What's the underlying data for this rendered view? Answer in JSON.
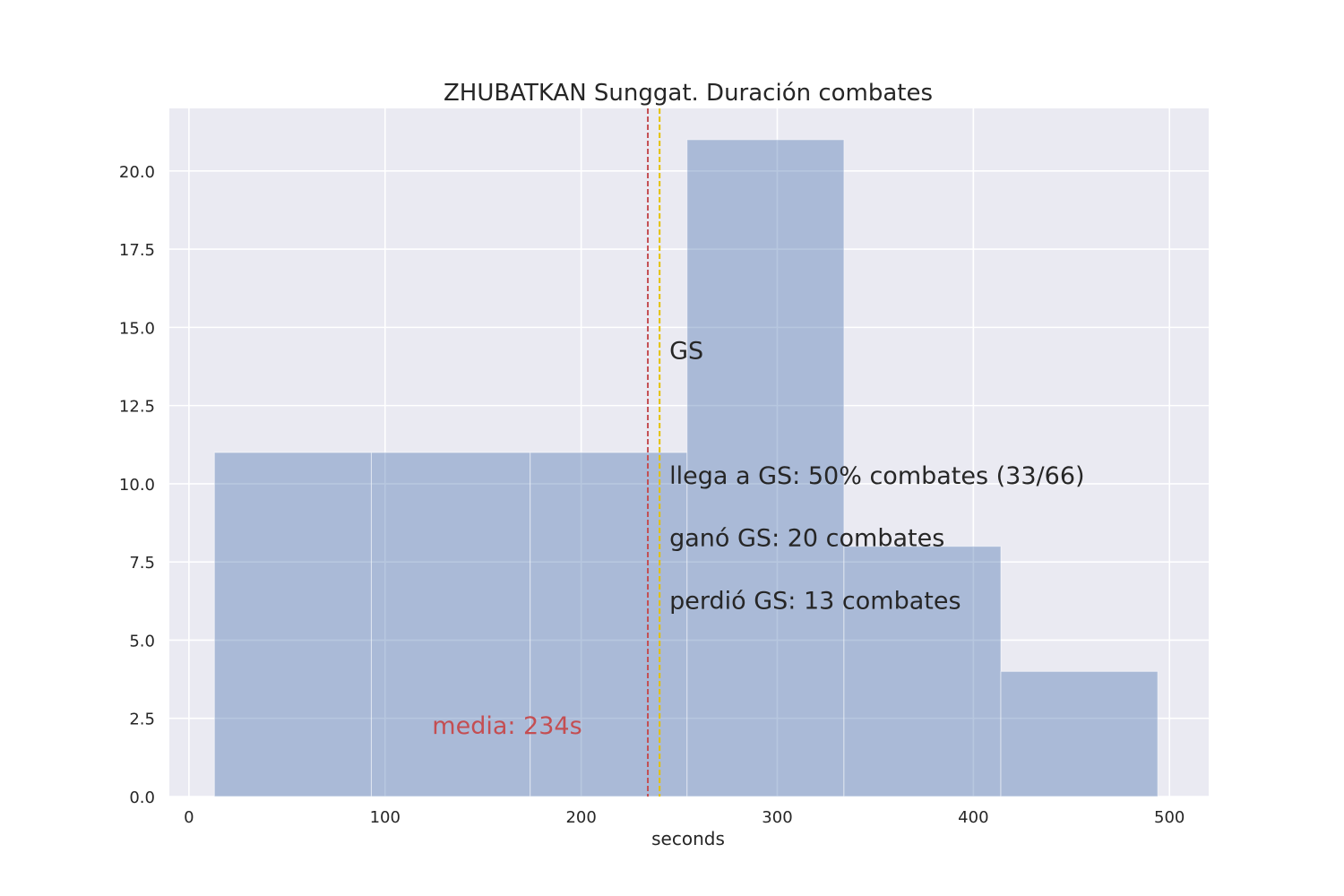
{
  "chart_data": {
    "type": "bar",
    "title": "ZHUBATKAN Sunggat. Duración combates",
    "xlabel": "seconds",
    "ylabel": "",
    "xlim": [
      -10,
      520
    ],
    "ylim": [
      0,
      22
    ],
    "grid": true,
    "x_ticks": [
      0,
      100,
      200,
      300,
      400,
      500
    ],
    "x_tick_labels": [
      "0",
      "100",
      "200",
      "300",
      "400",
      "500"
    ],
    "y_ticks": [
      0,
      2.5,
      5,
      7.5,
      10,
      12.5,
      15,
      17.5,
      20
    ],
    "y_tick_labels": [
      "0.0",
      "2.5",
      "5.0",
      "7.5",
      "10.0",
      "12.5",
      "15.0",
      "17.5",
      "20.0"
    ],
    "bins": [
      {
        "start": 13,
        "end": 93,
        "count": 11
      },
      {
        "start": 93,
        "end": 174,
        "count": 11
      },
      {
        "start": 174,
        "end": 254,
        "count": 11
      },
      {
        "start": 254,
        "end": 334,
        "count": 21
      },
      {
        "start": 334,
        "end": 414,
        "count": 8
      },
      {
        "start": 414,
        "end": 494,
        "count": 4
      }
    ],
    "mean_line": {
      "x": 234,
      "color": "#c44e52"
    },
    "gs_line": {
      "x": 240,
      "color": "#e5c100"
    },
    "annotations": [
      {
        "text": "GS",
        "x": 245,
        "y": 14
      },
      {
        "text": "llega a GS: 50% combates (33/66)",
        "x": 245,
        "y": 10
      },
      {
        "text": "ganó GS: 20 combates",
        "x": 245,
        "y": 8
      },
      {
        "text": "perdió GS: 13 combates",
        "x": 245,
        "y": 6
      },
      {
        "text": "media: 234s",
        "x": 124,
        "y": 2,
        "color": "#c44e52"
      }
    ],
    "colors": {
      "bar": "#4c72b0",
      "background": "#eaeaf2",
      "grid": "#ffffff"
    }
  }
}
